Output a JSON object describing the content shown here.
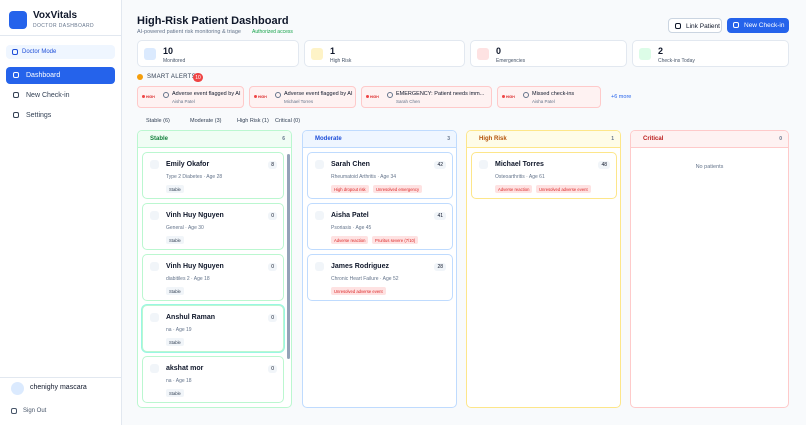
{
  "sidebar": {
    "brand": "VoxVitals",
    "brand_subtitle": "DOCTOR DASHBOARD",
    "mode": "Doctor Mode",
    "nav": [
      "Dashboard",
      "New Check-in",
      "Settings"
    ],
    "user": "chenighy mascara",
    "sign_out": "Sign Out"
  },
  "header": {
    "title": "High-Risk Patient Dashboard",
    "subtitle": "AI-powered patient risk monitoring & triage",
    "badge": "Authorized access",
    "buttons": [
      "Link Patient",
      "New Check-in"
    ]
  },
  "stats": [
    {
      "value": 10,
      "label": "Monitored"
    },
    {
      "value": 1,
      "label": "High Risk"
    },
    {
      "value": 0,
      "label": "Emergencies"
    },
    {
      "value": 2,
      "label": "Check-ins Today"
    }
  ],
  "alerts": {
    "title": "SMART ALERTS",
    "count": 10,
    "items": [
      {
        "level": "HIGH",
        "title": "Adverse event flagged by AI",
        "patient": "Aisha Patel"
      },
      {
        "level": "HIGH",
        "title": "Adverse event flagged by AI",
        "patient": "Michael Torres"
      },
      {
        "level": "HIGH",
        "title": "EMERGENCY: Patient needs imm...",
        "patient": "Sarah Chen"
      },
      {
        "level": "HIGH",
        "title": "Missed check-ins",
        "patient": "Aisha Patel"
      }
    ],
    "more": "+6 more"
  },
  "legend": [
    "Stable (6)",
    "Moderate (3)",
    "High Risk (1)",
    "Critical (0)"
  ],
  "columns": [
    {
      "name": "Stable",
      "count": 6,
      "patients": [
        {
          "name": "Emily Okafor",
          "detail": "Type 2 Diabetes · Age 28",
          "score": 8,
          "tags": [
            "Stable"
          ]
        },
        {
          "name": "Vinh Huy Nguyen",
          "detail": "General · Age 30",
          "score": 0,
          "tags": [
            "Stable"
          ]
        },
        {
          "name": "Vinh Huy Nguyen",
          "detail": "diabitiles 2 · Age 18",
          "score": 0,
          "tags": [
            "Stable"
          ]
        },
        {
          "name": "Anshul Raman",
          "detail": "na · Age 19",
          "score": 0,
          "tags": [
            "Stable"
          ]
        },
        {
          "name": "akshat mor",
          "detail": "na · Age 18",
          "score": 0,
          "tags": [
            "Stable"
          ]
        }
      ]
    },
    {
      "name": "Moderate",
      "count": 3,
      "patients": [
        {
          "name": "Sarah Chen",
          "detail": "Rheumatoid Arthritis · Age 34",
          "score": 42,
          "tags": [
            "High dropout risk",
            "Unresolved emergency"
          ]
        },
        {
          "name": "Aisha Patel",
          "detail": "Psoriasis · Age 45",
          "score": 41,
          "tags": [
            "Adverse reaction",
            "Pruritus severe (7/10)"
          ]
        },
        {
          "name": "James Rodriguez",
          "detail": "Chronic Heart Failure · Age 52",
          "score": 28,
          "tags": [
            "Unresolved adverse event"
          ]
        }
      ]
    },
    {
      "name": "High Risk",
      "count": 1,
      "patients": [
        {
          "name": "Michael Torres",
          "detail": "Osteoarthritis · Age 61",
          "score": 48,
          "tags": [
            "Adverse reaction",
            "Unresolved adverse event"
          ]
        }
      ]
    },
    {
      "name": "Critical",
      "count": 0,
      "patients": [],
      "empty": "No patients"
    }
  ]
}
